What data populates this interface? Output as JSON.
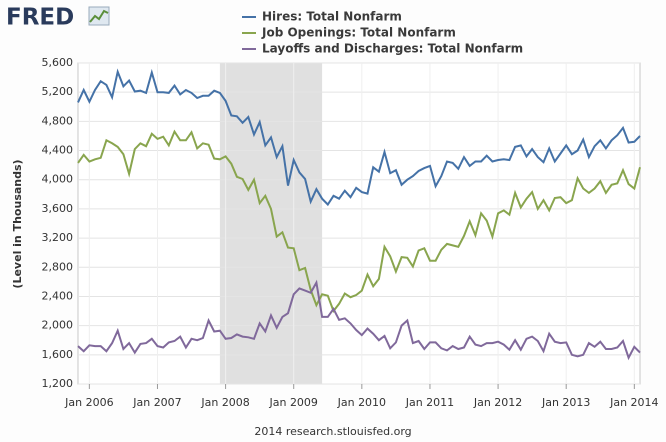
{
  "brand": "FRED",
  "footer": "2014 research.stlouisfed.org",
  "chart_data": {
    "type": "line",
    "y_label": "(Level in Thousands)",
    "x": [
      "2005-11",
      "2005-12",
      "2006-01",
      "2006-02",
      "2006-03",
      "2006-04",
      "2006-05",
      "2006-06",
      "2006-07",
      "2006-08",
      "2006-09",
      "2006-10",
      "2006-11",
      "2006-12",
      "2007-01",
      "2007-02",
      "2007-03",
      "2007-04",
      "2007-05",
      "2007-06",
      "2007-07",
      "2007-08",
      "2007-09",
      "2007-10",
      "2007-11",
      "2007-12",
      "2008-01",
      "2008-02",
      "2008-03",
      "2008-04",
      "2008-05",
      "2008-06",
      "2008-07",
      "2008-08",
      "2008-09",
      "2008-10",
      "2008-11",
      "2008-12",
      "2009-01",
      "2009-02",
      "2009-03",
      "2009-04",
      "2009-05",
      "2009-06",
      "2009-07",
      "2009-08",
      "2009-09",
      "2009-10",
      "2009-11",
      "2009-12",
      "2010-01",
      "2010-02",
      "2010-03",
      "2010-04",
      "2010-05",
      "2010-06",
      "2010-07",
      "2010-08",
      "2010-09",
      "2010-10",
      "2010-11",
      "2010-12",
      "2011-01",
      "2011-02",
      "2011-03",
      "2011-04",
      "2011-05",
      "2011-06",
      "2011-07",
      "2011-08",
      "2011-09",
      "2011-10",
      "2011-11",
      "2011-12",
      "2012-01",
      "2012-02",
      "2012-03",
      "2012-04",
      "2012-05",
      "2012-06",
      "2012-07",
      "2012-08",
      "2012-09",
      "2012-10",
      "2012-11",
      "2012-12",
      "2013-01",
      "2013-02",
      "2013-03",
      "2013-04",
      "2013-05",
      "2013-06",
      "2013-07",
      "2013-08",
      "2013-09",
      "2013-10",
      "2013-11",
      "2013-12",
      "2014-01",
      "2014-02"
    ],
    "series": [
      {
        "name": "Hires: Total Nonfarm",
        "color": "#4572a7",
        "values": [
          5060,
          5230,
          5070,
          5230,
          5350,
          5300,
          5130,
          5480,
          5280,
          5360,
          5210,
          5220,
          5190,
          5470,
          5200,
          5200,
          5190,
          5290,
          5170,
          5230,
          5190,
          5120,
          5150,
          5150,
          5220,
          5190,
          5080,
          4880,
          4870,
          4780,
          4860,
          4620,
          4790,
          4470,
          4580,
          4310,
          4460,
          3920,
          4270,
          4100,
          4010,
          3700,
          3870,
          3740,
          3660,
          3780,
          3740,
          3850,
          3760,
          3890,
          3830,
          3810,
          4170,
          4110,
          4380,
          4090,
          4130,
          3930,
          4000,
          4050,
          4120,
          4160,
          4190,
          3910,
          4050,
          4250,
          4230,
          4150,
          4310,
          4190,
          4250,
          4250,
          4330,
          4250,
          4270,
          4280,
          4270,
          4450,
          4470,
          4320,
          4420,
          4310,
          4240,
          4430,
          4250,
          4360,
          4470,
          4350,
          4400,
          4550,
          4310,
          4460,
          4540,
          4430,
          4540,
          4610,
          4710,
          4510,
          4520,
          4600
        ]
      },
      {
        "name": "Job Openings: Total Nonfarm",
        "color": "#89a54e",
        "values": [
          4230,
          4340,
          4250,
          4280,
          4300,
          4540,
          4500,
          4450,
          4350,
          4080,
          4420,
          4500,
          4460,
          4630,
          4560,
          4590,
          4470,
          4660,
          4540,
          4540,
          4650,
          4430,
          4500,
          4480,
          4290,
          4280,
          4320,
          4220,
          4040,
          4010,
          3860,
          4000,
          3680,
          3780,
          3600,
          3220,
          3280,
          3070,
          3060,
          2760,
          2790,
          2490,
          2280,
          2430,
          2410,
          2200,
          2300,
          2440,
          2390,
          2420,
          2480,
          2700,
          2540,
          2640,
          3080,
          2950,
          2740,
          2940,
          2930,
          2810,
          3030,
          3060,
          2890,
          2890,
          3040,
          3120,
          3100,
          3080,
          3230,
          3430,
          3240,
          3540,
          3440,
          3220,
          3540,
          3580,
          3520,
          3820,
          3620,
          3740,
          3830,
          3600,
          3720,
          3580,
          3750,
          3760,
          3680,
          3720,
          4020,
          3880,
          3820,
          3880,
          3980,
          3820,
          3930,
          3950,
          4130,
          3940,
          3880,
          4170
        ]
      },
      {
        "name": "Layoffs and Discharges: Total Nonfarm",
        "color": "#80699b",
        "values": [
          1720,
          1650,
          1730,
          1720,
          1720,
          1650,
          1760,
          1930,
          1680,
          1760,
          1630,
          1750,
          1760,
          1820,
          1720,
          1700,
          1770,
          1790,
          1850,
          1700,
          1820,
          1800,
          1830,
          2070,
          1920,
          1930,
          1820,
          1830,
          1880,
          1850,
          1840,
          1820,
          2030,
          1920,
          2140,
          1970,
          2120,
          2170,
          2430,
          2510,
          2480,
          2450,
          2590,
          2120,
          2120,
          2230,
          2080,
          2100,
          2030,
          1940,
          1870,
          1960,
          1890,
          1800,
          1860,
          1690,
          1770,
          2000,
          2070,
          1760,
          1790,
          1680,
          1770,
          1770,
          1690,
          1660,
          1720,
          1680,
          1700,
          1850,
          1740,
          1720,
          1760,
          1760,
          1780,
          1740,
          1670,
          1800,
          1670,
          1820,
          1850,
          1790,
          1650,
          1890,
          1780,
          1760,
          1770,
          1600,
          1580,
          1600,
          1760,
          1710,
          1780,
          1680,
          1680,
          1700,
          1790,
          1560,
          1710,
          1630
        ]
      }
    ],
    "xlim": [
      "2005-11",
      "2014-02"
    ],
    "xticks": [
      {
        "value": "2006-01",
        "label": "Jan 2006"
      },
      {
        "value": "2007-01",
        "label": "Jan 2007"
      },
      {
        "value": "2008-01",
        "label": "Jan 2008"
      },
      {
        "value": "2009-01",
        "label": "Jan 2009"
      },
      {
        "value": "2010-01",
        "label": "Jan 2010"
      },
      {
        "value": "2011-01",
        "label": "Jan 2011"
      },
      {
        "value": "2012-01",
        "label": "Jan 2012"
      },
      {
        "value": "2013-01",
        "label": "Jan 2013"
      },
      {
        "value": "2014-01",
        "label": "Jan 2014"
      }
    ],
    "ylim": [
      1200,
      5600
    ],
    "yticks": [
      {
        "value": 1200,
        "label": "1,200"
      },
      {
        "value": 1600,
        "label": "1,600"
      },
      {
        "value": 2000,
        "label": "2,000"
      },
      {
        "value": 2400,
        "label": "2,400"
      },
      {
        "value": 2800,
        "label": "2,800"
      },
      {
        "value": 3200,
        "label": "3,200"
      },
      {
        "value": 3600,
        "label": "3,600"
      },
      {
        "value": 4000,
        "label": "4,000"
      },
      {
        "value": 4400,
        "label": "4,400"
      },
      {
        "value": 4800,
        "label": "4,800"
      },
      {
        "value": 5200,
        "label": "5,200"
      },
      {
        "value": 5600,
        "label": "5,600"
      }
    ],
    "grid": true,
    "recessions": [
      [
        "2007-12",
        "2009-06"
      ]
    ],
    "recession_color": "#e0e0e0"
  }
}
